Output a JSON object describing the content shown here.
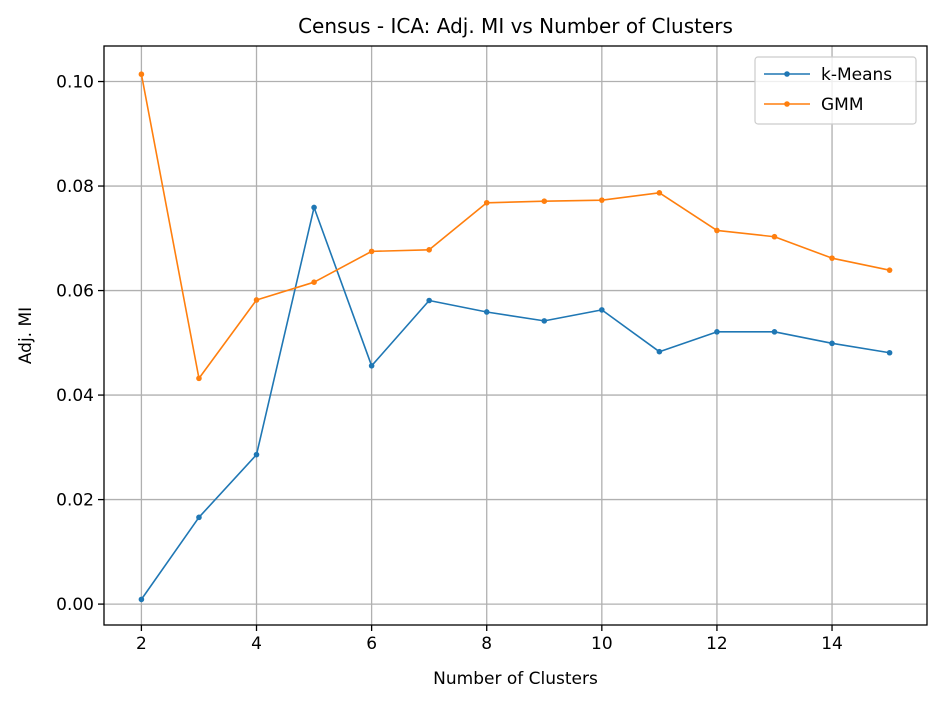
{
  "chart_data": {
    "type": "line",
    "title": "Census - ICA: Adj. MI vs Number of Clusters",
    "xlabel": "Number of Clusters",
    "ylabel": "Adj. MI",
    "x": [
      2,
      3,
      4,
      5,
      6,
      7,
      8,
      9,
      10,
      11,
      12,
      13,
      14,
      15
    ],
    "xlim": [
      1.35,
      15.65
    ],
    "ylim": [
      -0.004,
      0.1068
    ],
    "xticks": [
      2,
      4,
      6,
      8,
      10,
      12,
      14
    ],
    "xtick_labels": [
      "2",
      "4",
      "6",
      "8",
      "10",
      "12",
      "14"
    ],
    "yticks": [
      0.0,
      0.02,
      0.04,
      0.06,
      0.08,
      0.1
    ],
    "ytick_labels": [
      "0.00",
      "0.02",
      "0.04",
      "0.06",
      "0.08",
      "0.10"
    ],
    "grid": true,
    "legend_position": "top-right",
    "series": [
      {
        "name": "k-Means",
        "color": "#1f77b4",
        "values": [
          0.0009,
          0.0166,
          0.0286,
          0.0759,
          0.0456,
          0.0581,
          0.0559,
          0.0542,
          0.0563,
          0.0483,
          0.0521,
          0.0521,
          0.0499,
          0.0481
        ]
      },
      {
        "name": "GMM",
        "color": "#ff7f0e",
        "values": [
          0.1014,
          0.0432,
          0.0582,
          0.0616,
          0.0675,
          0.0678,
          0.0768,
          0.0771,
          0.0773,
          0.0787,
          0.0715,
          0.0703,
          0.0662,
          0.0639
        ]
      }
    ]
  }
}
